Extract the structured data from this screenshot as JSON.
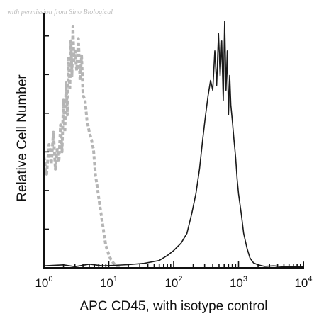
{
  "watermark": "with permission from Sino Biological",
  "chart_data": {
    "type": "line",
    "title": "",
    "xlabel": "APC CD45, with isotype control",
    "ylabel": "Relative Cell Number",
    "xscale": "log",
    "xlim": [
      1,
      10000
    ],
    "ylim": [
      0,
      100
    ],
    "grid": false,
    "legend": "none",
    "x_ticks": [
      {
        "base": "10",
        "exp": "0"
      },
      {
        "base": "10",
        "exp": "1"
      },
      {
        "base": "10",
        "exp": "2"
      },
      {
        "base": "10",
        "exp": "3"
      },
      {
        "base": "10",
        "exp": "4"
      }
    ],
    "series": [
      {
        "style": "dashed",
        "color": "#b5b5b5",
        "x": [
          1.0,
          1.1,
          1.2,
          1.3,
          1.4,
          1.5,
          1.6,
          1.7,
          1.8,
          1.9,
          2.0,
          2.1,
          2.2,
          2.3,
          2.4,
          2.5,
          2.6,
          2.7,
          2.8,
          2.9,
          3.0,
          3.2,
          3.4,
          3.6,
          3.8,
          4.0,
          4.3,
          4.6,
          5.0,
          5.4,
          5.8,
          6.2,
          6.7,
          7.2,
          7.8,
          8.4,
          9.0,
          9.8,
          10.5,
          11.3,
          12.2,
          13.2,
          14.3,
          15.0
        ],
        "y": [
          45,
          38,
          50,
          42,
          55,
          40,
          48,
          43,
          58,
          47,
          68,
          55,
          75,
          62,
          85,
          72,
          92,
          78,
          98,
          84,
          88,
          80,
          93,
          76,
          86,
          70,
          68,
          60,
          55,
          52,
          48,
          38,
          32,
          26,
          20,
          14,
          9,
          6,
          4,
          2.5,
          1.5,
          0.8,
          0.3,
          0
        ]
      },
      {
        "style": "solid",
        "color": "#1a1a1a",
        "x": [
          1.0,
          2.0,
          3.0,
          5.0,
          8.0,
          12.0,
          20.0,
          35.0,
          60.0,
          80.0,
          100,
          130,
          160,
          190,
          220,
          250,
          280,
          310,
          340,
          370,
          400,
          430,
          460,
          490,
          520,
          550,
          580,
          610,
          640,
          670,
          700,
          730,
          760,
          800,
          850,
          900,
          950,
          1000,
          1100,
          1200,
          1350,
          1500,
          1700,
          2000,
          2500,
          3500,
          5000,
          10000
        ],
        "y": [
          0.8,
          1.2,
          0.5,
          1.5,
          0.8,
          1.0,
          1.3,
          1.8,
          3,
          5,
          7,
          10,
          14,
          22,
          30,
          40,
          52,
          62,
          70,
          76,
          72,
          88,
          74,
          95,
          78,
          92,
          68,
          100,
          72,
          88,
          62,
          78,
          66,
          60,
          52,
          45,
          36,
          30,
          22,
          14,
          8,
          4,
          2,
          1.2,
          0.6,
          0.8,
          0.4,
          0.5
        ]
      }
    ]
  }
}
